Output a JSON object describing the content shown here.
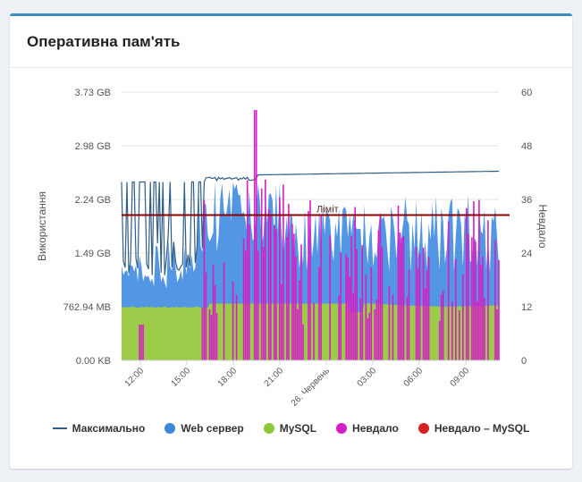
{
  "card": {
    "title": "Оперативна пам'ять"
  },
  "chart_data": {
    "type": "area",
    "y_axis_left": {
      "label": "Використання",
      "ticks": [
        "0.00 KB",
        "762.94 MB",
        "1.49 GB",
        "2.24 GB",
        "2.98 GB",
        "3.73 GB"
      ],
      "range": [
        0,
        3.73
      ],
      "unit": "GB"
    },
    "y_axis_right": {
      "label": "Невдало",
      "ticks": [
        "0",
        "12",
        "24",
        "36",
        "48",
        "60"
      ],
      "range": [
        0,
        60
      ]
    },
    "x_axis": {
      "ticks": [
        "12:00",
        "15:00",
        "18:00",
        "21:00",
        "26. Червень",
        "03:00",
        "06:00",
        "09:00"
      ]
    },
    "limit_line": {
      "label": "Ліміт",
      "value_gb": 2.02,
      "color": "#8b0000"
    },
    "series": [
      {
        "name": "Максимально",
        "color": "#2f5d84",
        "style": "line",
        "approx_profile_gb": [
          [
            0,
            1.4
          ],
          [
            0.2,
            2.2
          ],
          [
            0.3,
            2.5
          ],
          [
            0.35,
            2.61
          ],
          [
            1.0,
            2.61
          ]
        ]
      },
      {
        "name": "Web сервер",
        "color": "#4a90e2",
        "style": "area",
        "approx_range_gb": [
          1.0,
          2.5
        ]
      },
      {
        "name": "MySQL",
        "color": "#8dc63f",
        "style": "area",
        "approx_level_gb": 0.72
      },
      {
        "name": "Невдало",
        "color": "#d41fc6",
        "style": "bars",
        "peak": 56,
        "typical_range": [
          10,
          36
        ]
      },
      {
        "name": "Невдало – MySQL",
        "color": "#d42020",
        "style": "bars"
      }
    ],
    "grid": true,
    "legend_position": "bottom"
  },
  "legend": [
    {
      "label": "Максимально",
      "kind": "line",
      "color": "#2f5d84"
    },
    {
      "label": "Web сервер",
      "kind": "dot",
      "color": "#3f88d8"
    },
    {
      "label": "MySQL",
      "kind": "dot",
      "color": "#8ec63c"
    },
    {
      "label": "Невдало",
      "kind": "dot",
      "color": "#d41fc6"
    },
    {
      "label": "Невдало – MySQL",
      "kind": "dot",
      "color": "#d42020"
    }
  ]
}
